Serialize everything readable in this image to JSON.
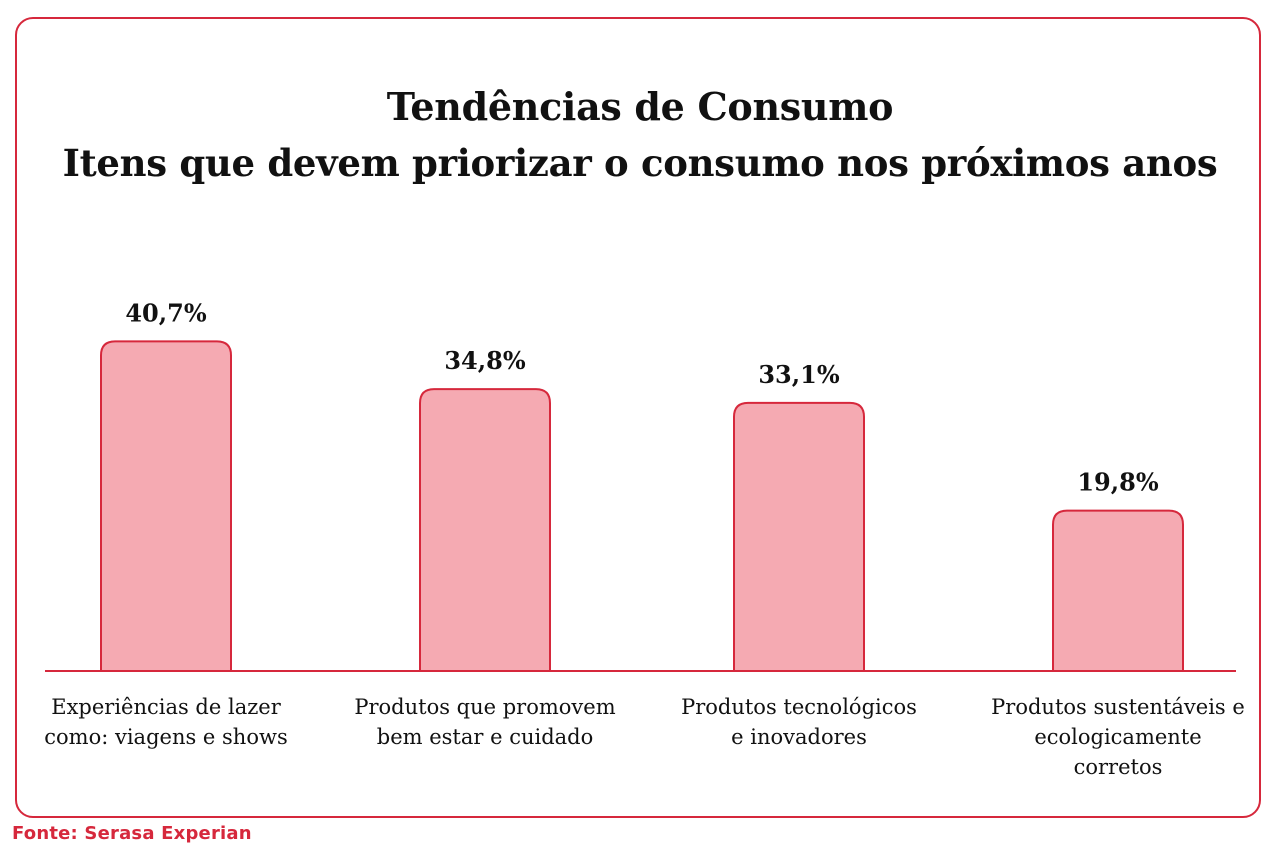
{
  "colors": {
    "bar_fill": "#f5aab2",
    "bar_stroke": "#d6283c",
    "frame": "#d6283c",
    "text": "#111111",
    "source_text": "#d6283c"
  },
  "title": {
    "line1": "Tendências de Consumo",
    "line2": "Itens que devem priorizar o consumo nos próximos anos"
  },
  "source": "Fonte: Serasa Experian",
  "chart_data": {
    "type": "bar",
    "title": "Tendências de Consumo\nItens que devem priorizar o consumo nos próximos anos",
    "xlabel": "",
    "ylabel": "",
    "grid": false,
    "legend": "none",
    "categories": [
      [
        "Experiências de lazer",
        "como: viagens e shows"
      ],
      [
        "Produtos que promovem",
        "bem estar e cuidado"
      ],
      [
        "Produtos tecnológicos",
        "e inovadores"
      ],
      [
        "Produtos sustentáveis e",
        "ecologicamente",
        "corretos"
      ]
    ],
    "values": [
      40.7,
      34.8,
      33.1,
      19.8
    ],
    "value_labels": [
      "40,7%",
      "34,8%",
      "33,1%",
      "19,8%"
    ],
    "unit": "%"
  }
}
